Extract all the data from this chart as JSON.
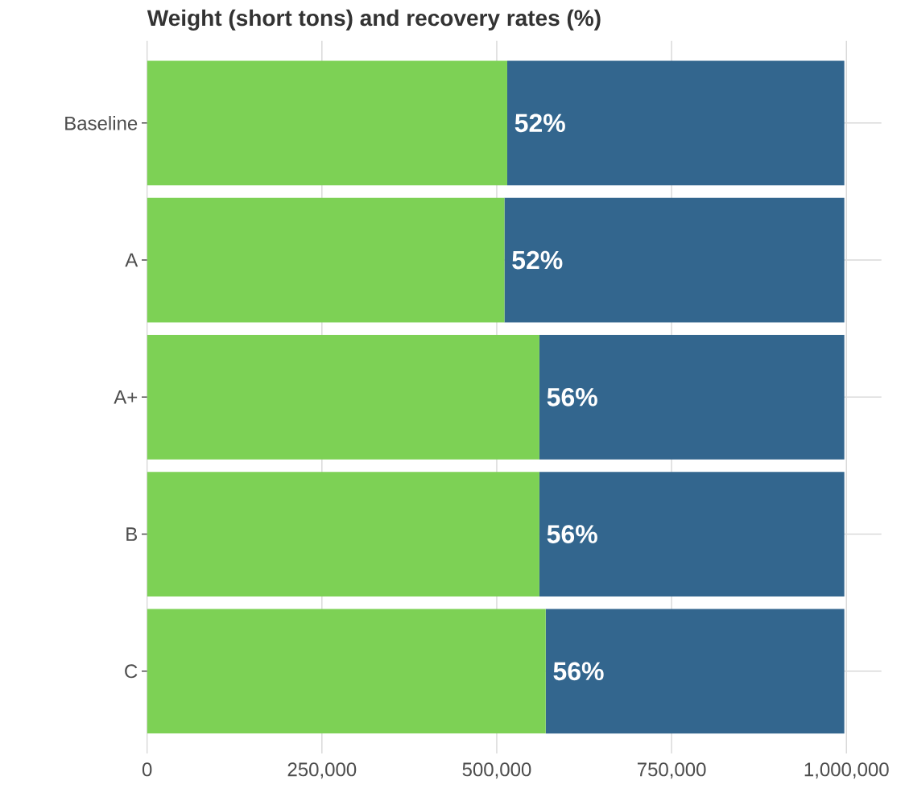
{
  "chart_data": {
    "type": "bar",
    "orientation": "horizontal",
    "stacked": true,
    "title": "Weight (short tons) and recovery rates (%)",
    "categories": [
      "Baseline",
      "A",
      "A+",
      "B",
      "C"
    ],
    "series": [
      {
        "color": "#7dd155",
        "values": [
          515000,
          511000,
          561000,
          561000,
          570000
        ]
      },
      {
        "color": "#33668e",
        "values": [
          482000,
          486000,
          436000,
          436000,
          427000
        ]
      }
    ],
    "annotations": [
      {
        "text": "52%",
        "x": 515000,
        "y": "Baseline"
      },
      {
        "text": "52%",
        "x": 511000,
        "y": "A"
      },
      {
        "text": "56%",
        "x": 561000,
        "y": "A+"
      },
      {
        "text": "56%",
        "x": 561000,
        "y": "B"
      },
      {
        "text": "56%",
        "x": 570000,
        "y": "C"
      }
    ],
    "xlim": [
      0,
      1050000
    ],
    "xticks": [
      0,
      {
        "value": 250000,
        "label": "250,000"
      },
      {
        "value": 500000,
        "label": "500,000"
      },
      {
        "value": 750000,
        "label": "750,000"
      },
      {
        "value": 1000000,
        "label": "1,000,000"
      }
    ],
    "grid": true
  }
}
